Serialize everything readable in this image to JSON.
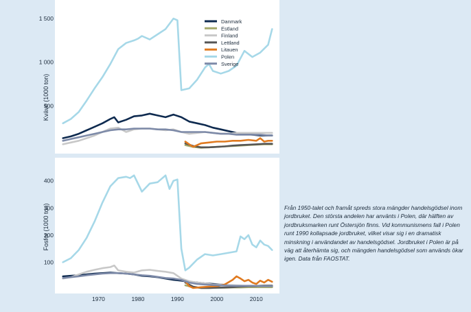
{
  "chart_data": [
    {
      "type": "line",
      "ylabel": "Kväve (1000 ton)",
      "yticks": [
        500,
        1000,
        1500
      ],
      "ylim": [
        0,
        1650
      ],
      "xlim": [
        1960,
        2015
      ],
      "legend_position": "top-right",
      "series": [
        {
          "name": "Danmark",
          "color": "#0e2a4f",
          "x": [
            1961,
            1963,
            1965,
            1967,
            1969,
            1971,
            1973,
            1974,
            1975,
            1977,
            1979,
            1981,
            1983,
            1985,
            1987,
            1989,
            1991,
            1993,
            1995,
            1997,
            1999,
            2001,
            2003,
            2005,
            2007,
            2009,
            2011,
            2013,
            2014
          ],
          "y": [
            130,
            150,
            180,
            220,
            260,
            300,
            350,
            370,
            310,
            340,
            380,
            390,
            410,
            390,
            370,
            400,
            370,
            320,
            300,
            280,
            250,
            230,
            210,
            190,
            180,
            170,
            160,
            160,
            160
          ]
        },
        {
          "name": "Estland",
          "color": "#a4a86a",
          "x": [
            1992,
            1994,
            1996,
            1998,
            2000,
            2002,
            2004,
            2006,
            2008,
            2010,
            2012,
            2014
          ],
          "y": [
            50,
            30,
            20,
            25,
            30,
            35,
            40,
            45,
            50,
            55,
            60,
            60
          ]
        },
        {
          "name": "Finland",
          "color": "#c8c8c8",
          "x": [
            1961,
            1963,
            1965,
            1967,
            1969,
            1971,
            1973,
            1975,
            1977,
            1979,
            1981,
            1983,
            1985,
            1987,
            1989,
            1991,
            1993,
            1995,
            1997,
            1999,
            2001,
            2003,
            2005,
            2007,
            2009,
            2011,
            2013,
            2014
          ],
          "y": [
            60,
            80,
            100,
            130,
            160,
            200,
            240,
            250,
            200,
            230,
            240,
            240,
            230,
            220,
            230,
            200,
            180,
            190,
            200,
            190,
            180,
            180,
            190,
            190,
            190,
            190,
            190,
            190
          ]
        },
        {
          "name": "Lettland",
          "color": "#555555",
          "x": [
            1992,
            1994,
            1996,
            1998,
            2000,
            2002,
            2004,
            2006,
            2008,
            2010,
            2012,
            2014
          ],
          "y": [
            70,
            40,
            25,
            25,
            30,
            35,
            45,
            50,
            55,
            60,
            65,
            65
          ]
        },
        {
          "name": "Litauen",
          "color": "#e07a1f",
          "x": [
            1992,
            1993,
            1994,
            1996,
            1998,
            2000,
            2002,
            2004,
            2006,
            2008,
            2010,
            2011,
            2012,
            2013,
            2014
          ],
          "y": [
            90,
            60,
            30,
            70,
            80,
            90,
            90,
            100,
            100,
            110,
            100,
            130,
            90,
            100,
            100
          ]
        },
        {
          "name": "Polen",
          "color": "#a6d8e8",
          "x": [
            1961,
            1963,
            1965,
            1967,
            1969,
            1971,
            1973,
            1975,
            1977,
            1979,
            1980,
            1981,
            1983,
            1985,
            1987,
            1989,
            1990,
            1991,
            1993,
            1995,
            1997,
            1998,
            1999,
            2001,
            2003,
            2005,
            2007,
            2009,
            2011,
            2013,
            2014
          ],
          "y": [
            300,
            350,
            430,
            560,
            700,
            830,
            980,
            1150,
            1220,
            1250,
            1270,
            1300,
            1260,
            1320,
            1380,
            1500,
            1480,
            680,
            700,
            800,
            940,
            980,
            900,
            870,
            900,
            960,
            1130,
            1060,
            1110,
            1200,
            1380
          ]
        },
        {
          "name": "Sverige",
          "color": "#7d8aa8",
          "x": [
            1961,
            1963,
            1965,
            1967,
            1969,
            1971,
            1973,
            1975,
            1977,
            1979,
            1981,
            1983,
            1985,
            1987,
            1989,
            1991,
            1993,
            1995,
            1997,
            1999,
            2001,
            2003,
            2005,
            2007,
            2009,
            2011,
            2013,
            2014
          ],
          "y": [
            100,
            120,
            140,
            160,
            180,
            200,
            220,
            230,
            230,
            240,
            240,
            240,
            230,
            230,
            220,
            200,
            200,
            200,
            200,
            190,
            180,
            180,
            170,
            170,
            170,
            170,
            160,
            160
          ]
        }
      ]
    },
    {
      "type": "line",
      "ylabel": "Fosfor (1000 ton)",
      "xlabel": "",
      "yticks": [
        100,
        200,
        300,
        400
      ],
      "ylim": [
        0,
        470
      ],
      "xlim": [
        1960,
        2015
      ],
      "xticks": [
        1970,
        1980,
        1990,
        2000,
        2010
      ],
      "series": [
        {
          "name": "Danmark",
          "color": "#0e2a4f",
          "x": [
            1961,
            1963,
            1965,
            1967,
            1969,
            1971,
            1973,
            1975,
            1977,
            1979,
            1981,
            1983,
            1985,
            1987,
            1989,
            1991,
            1993,
            1995,
            1997,
            1999,
            2001,
            2003,
            2005,
            2007,
            2009,
            2011,
            2013,
            2014
          ],
          "y": [
            48,
            50,
            52,
            55,
            58,
            60,
            62,
            60,
            58,
            55,
            50,
            48,
            45,
            40,
            35,
            32,
            28,
            25,
            22,
            20,
            18,
            15,
            12,
            10,
            10,
            10,
            10,
            10
          ]
        },
        {
          "name": "Estland",
          "color": "#a4a86a",
          "x": [
            1992,
            1994,
            1996,
            1998,
            2000,
            2002,
            2004,
            2006,
            2008,
            2010,
            2012,
            2014
          ],
          "y": [
            15,
            8,
            5,
            5,
            6,
            6,
            7,
            7,
            8,
            8,
            8,
            8
          ]
        },
        {
          "name": "Finland",
          "color": "#c8c8c8",
          "x": [
            1961,
            1963,
            1965,
            1967,
            1969,
            1971,
            1973,
            1974,
            1975,
            1977,
            1979,
            1981,
            1983,
            1985,
            1987,
            1989,
            1991,
            1993,
            1995,
            1997,
            1999,
            2001,
            2003,
            2005,
            2007,
            2009,
            2011,
            2013,
            2014
          ],
          "y": [
            40,
            45,
            55,
            65,
            72,
            78,
            82,
            88,
            70,
            65,
            62,
            70,
            72,
            68,
            65,
            60,
            40,
            30,
            25,
            22,
            18,
            18,
            16,
            15,
            14,
            14,
            14,
            13,
            13
          ]
        },
        {
          "name": "Lettland",
          "color": "#555555",
          "x": [
            1992,
            1994,
            1996,
            1998,
            2000,
            2002,
            2004,
            2006,
            2008,
            2010,
            2012,
            2014
          ],
          "y": [
            25,
            10,
            5,
            5,
            6,
            7,
            8,
            10,
            12,
            12,
            14,
            14
          ]
        },
        {
          "name": "Litauen",
          "color": "#e07a1f",
          "x": [
            1992,
            1993,
            1994,
            1996,
            1998,
            2000,
            2002,
            2004,
            2005,
            2006,
            2007,
            2008,
            2009,
            2010,
            2011,
            2012,
            2013,
            2014
          ],
          "y": [
            30,
            12,
            5,
            8,
            10,
            12,
            18,
            35,
            48,
            40,
            30,
            35,
            25,
            20,
            32,
            25,
            35,
            28
          ]
        },
        {
          "name": "Polen",
          "color": "#a6d8e8",
          "x": [
            1961,
            1963,
            1965,
            1967,
            1969,
            1971,
            1973,
            1975,
            1977,
            1978,
            1979,
            1981,
            1983,
            1985,
            1987,
            1988,
            1989,
            1990,
            1991,
            1992,
            1993,
            1995,
            1997,
            1999,
            2001,
            2003,
            2005,
            2006,
            2007,
            2008,
            2009,
            2010,
            2011,
            2012,
            2013,
            2014
          ],
          "y": [
            100,
            115,
            145,
            190,
            250,
            320,
            380,
            410,
            415,
            410,
            420,
            360,
            390,
            395,
            420,
            370,
            400,
            405,
            150,
            70,
            80,
            110,
            130,
            125,
            130,
            135,
            140,
            195,
            185,
            200,
            165,
            155,
            180,
            165,
            160,
            145
          ]
        },
        {
          "name": "Sverige",
          "color": "#7d8aa8",
          "x": [
            1961,
            1963,
            1965,
            1967,
            1969,
            1971,
            1973,
            1975,
            1977,
            1979,
            1981,
            1983,
            1985,
            1987,
            1989,
            1991,
            1993,
            1995,
            1997,
            1999,
            2001,
            2003,
            2005,
            2007,
            2009,
            2011,
            2013,
            2014
          ],
          "y": [
            42,
            45,
            48,
            52,
            55,
            58,
            60,
            60,
            58,
            55,
            52,
            50,
            46,
            42,
            40,
            35,
            25,
            20,
            18,
            16,
            15,
            14,
            13,
            13,
            13,
            12,
            12,
            12
          ]
        }
      ]
    }
  ],
  "caption": "Från 1950-talet och framåt spreds stora mängder handelsgödsel inom jordbruket. Den största andelen har använts i Polen, där hälften av jordbruksmarken runt Östersjön finns. Vid kommunismens fall i Polen runt 1990 kollapsade jordbruket, vilket visar sig i en dramatisk minskning i användandet av handelsgödsel. Jordbruket i Polen är på väg att återhämta sig, och mängden handelsgödsel som används ökar igen. Data från FAOSTAT."
}
